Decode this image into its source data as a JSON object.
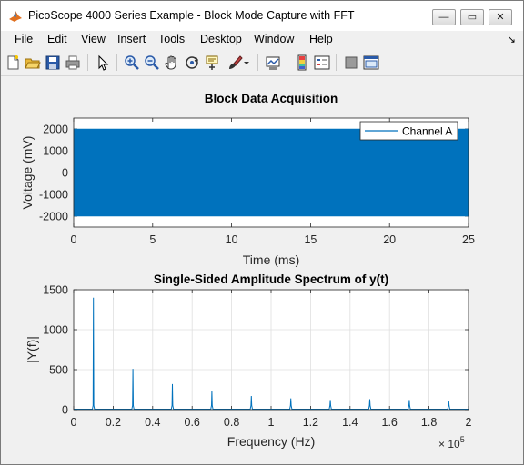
{
  "window": {
    "title": "PicoScope 4000 Series Example - Block Mode Capture with FFT",
    "minimize_glyph": "—",
    "maximize_glyph": "▭",
    "close_glyph": "✕"
  },
  "menubar": {
    "items": [
      "File",
      "Edit",
      "View",
      "Insert",
      "Tools",
      "Desktop",
      "Window",
      "Help"
    ],
    "dock_glyph": "↘"
  },
  "toolbar": {
    "icons": [
      "new-figure-icon",
      "open-file-icon",
      "save-icon",
      "print-icon",
      "pointer-icon",
      "zoom-in-icon",
      "zoom-out-icon",
      "pan-icon",
      "rotate-3d-icon",
      "data-cursor-icon",
      "brush-icon",
      "brush-dropdown-icon",
      "link-plot-icon",
      "colorbar-icon",
      "legend-icon",
      "hide-plot-tools-icon",
      "show-plot-tools-icon"
    ]
  },
  "colors": {
    "accent": "#0072bd",
    "background": "#f0f0f0",
    "grid": "#dfdfdf"
  },
  "chart_data": [
    {
      "type": "area",
      "title": "Block Data Acquisition",
      "xlabel": "Time (ms)",
      "ylabel": "Voltage (mV)",
      "xlim": [
        0,
        25
      ],
      "ylim": [
        -2500,
        2500
      ],
      "xticks": [
        0,
        5,
        10,
        15,
        20,
        25
      ],
      "yticks": [
        -2000,
        -1000,
        0,
        1000,
        2000
      ],
      "grid": false,
      "legend_position": "top-right",
      "series": [
        {
          "name": "Channel A",
          "x_range": [
            0,
            25
          ],
          "y_min": -2000,
          "y_max": 2000
        }
      ]
    },
    {
      "type": "line",
      "title": "Single-Sided Amplitude Spectrum of y(t)",
      "xlabel": "Frequency (Hz)",
      "ylabel": "|Y(f)|",
      "xlim": [
        0,
        200000
      ],
      "ylim": [
        0,
        1500
      ],
      "xticks": [
        0,
        0.2,
        0.4,
        0.6,
        0.8,
        1,
        1.2,
        1.4,
        1.6,
        1.8,
        2
      ],
      "yticks": [
        0,
        500,
        1000,
        1500
      ],
      "x_exponent": {
        "base": "× 10",
        "power": "5"
      },
      "grid": true,
      "x": [
        10000,
        30000,
        50000,
        70000,
        90000,
        110000,
        130000,
        150000,
        170000,
        190000
      ],
      "values": [
        1400,
        510,
        320,
        230,
        170,
        140,
        120,
        130,
        120,
        110
      ]
    }
  ]
}
